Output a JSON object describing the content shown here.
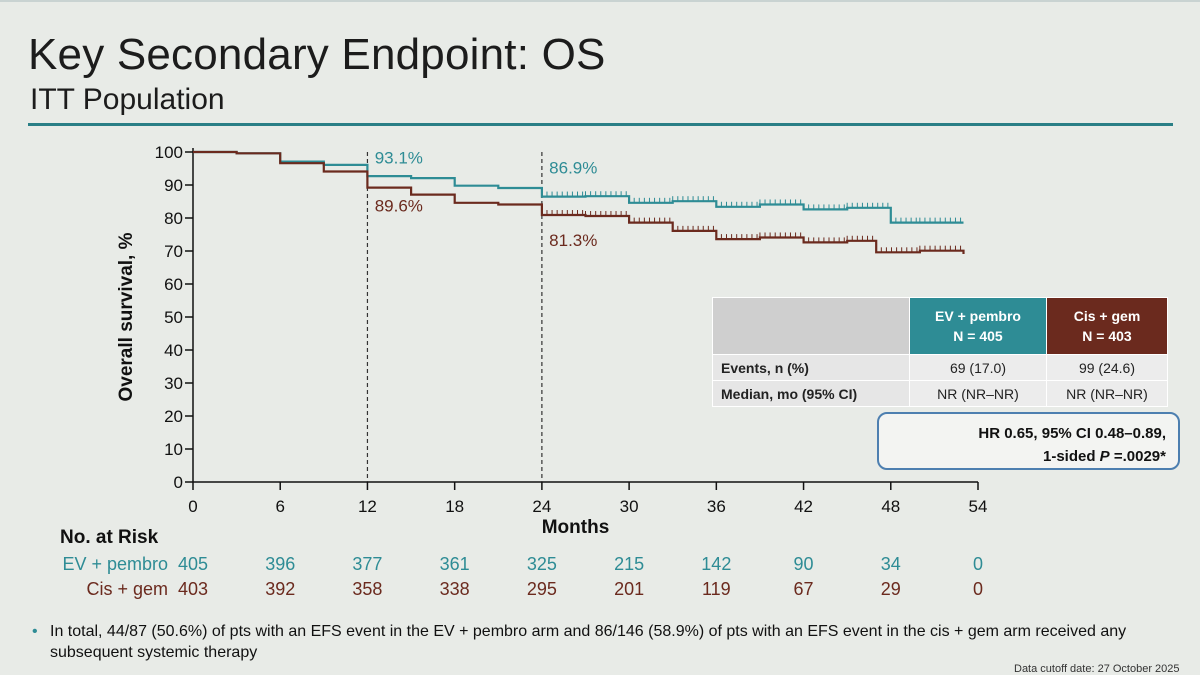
{
  "slide": {
    "title": "Key Secondary Endpoint: OS",
    "subtitle": "ITT Population"
  },
  "chart_data": {
    "type": "line",
    "title": "Key Secondary Endpoint: OS",
    "xlabel": "Months",
    "ylabel": "Overall survival, %",
    "xlim": [
      0,
      54
    ],
    "ylim": [
      0,
      100
    ],
    "xticks": [
      0,
      6,
      12,
      18,
      24,
      30,
      36,
      42,
      48,
      54
    ],
    "yticks": [
      0,
      10,
      20,
      30,
      40,
      50,
      60,
      70,
      80,
      90,
      100
    ],
    "series": [
      {
        "name": "EV + pembro",
        "color": "#2e8c95",
        "x": [
          0,
          3,
          6,
          9,
          12,
          15,
          18,
          21,
          24,
          27,
          30,
          33,
          36,
          39,
          42,
          45,
          48,
          50,
          53
        ],
        "y": [
          100,
          99,
          97.5,
          95.5,
          93.1,
          91.5,
          90.2,
          88.5,
          86.9,
          86,
          85,
          84.5,
          83.8,
          83.5,
          83,
          82.5,
          79,
          78,
          79
        ]
      },
      {
        "name": "Cis + gem",
        "color": "#6b2a1e",
        "x": [
          0,
          3,
          6,
          9,
          12,
          15,
          18,
          21,
          24,
          27,
          30,
          33,
          36,
          39,
          42,
          45,
          47,
          50,
          53
        ],
        "y": [
          100,
          99,
          97,
          93.5,
          89.6,
          86.5,
          85,
          83.5,
          81.3,
          80,
          79,
          75.5,
          74,
          73.5,
          73,
          72.5,
          70,
          69.5,
          69.5
        ]
      }
    ],
    "reference_lines": [
      {
        "x": 12,
        "labels": [
          "93.1%",
          "89.6%"
        ]
      },
      {
        "x": 24,
        "labels": [
          "86.9%",
          "81.3%"
        ]
      }
    ]
  },
  "risk_table": {
    "title": "No. at Risk",
    "rows": [
      {
        "label": "EV + pembro",
        "values": [
          "405",
          "396",
          "377",
          "361",
          "325",
          "215",
          "142",
          "90",
          "34",
          "0"
        ]
      },
      {
        "label": "Cis + gem",
        "values": [
          "403",
          "392",
          "358",
          "338",
          "295",
          "201",
          "119",
          "67",
          "29",
          "0"
        ]
      }
    ]
  },
  "summary_table": {
    "ev_header": "EV + pembro",
    "ev_n": "N = 405",
    "cis_header": "Cis + gem",
    "cis_n": "N = 403",
    "events_label": "Events, n (%)",
    "events_ev": "69 (17.0)",
    "events_cis": "99 (24.6)",
    "median_label": "Median, mo (95% CI)",
    "median_ev": "NR (NR–NR)",
    "median_cis": "NR (NR–NR)"
  },
  "hr_box": {
    "line1": "HR 0.65, 95% CI 0.48–0.89,",
    "line2_prefix": "1-sided ",
    "line2_p": "P",
    "line2_value": " =.0029*"
  },
  "footnote": {
    "bullet": "•",
    "text": "In total, 44/87 (50.6%) of pts with an EFS event in the EV + pembro arm and 86/146 (58.9%) of pts with an EFS event in the cis + gem arm received any subsequent systemic therapy"
  },
  "data_cutoff": "Data cutoff date: 27 October 2025"
}
